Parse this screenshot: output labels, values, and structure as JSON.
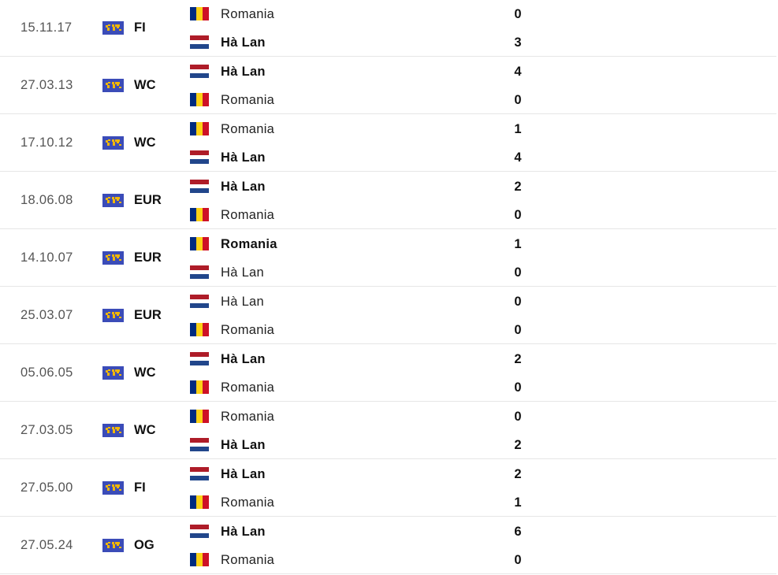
{
  "colors": {
    "comp_icon_bg": "#3b4cb8",
    "comp_icon_fg": "#f2b705",
    "divider": "#e6e6e6"
  },
  "matches": [
    {
      "date": "15.11.17",
      "competition": "FI",
      "home": {
        "name": "Romania",
        "flag": "romania",
        "score": "0",
        "winner": false
      },
      "away": {
        "name": "Hà Lan",
        "flag": "netherlands",
        "score": "3",
        "winner": true
      }
    },
    {
      "date": "27.03.13",
      "competition": "WC",
      "home": {
        "name": "Hà Lan",
        "flag": "netherlands",
        "score": "4",
        "winner": true
      },
      "away": {
        "name": "Romania",
        "flag": "romania",
        "score": "0",
        "winner": false
      }
    },
    {
      "date": "17.10.12",
      "competition": "WC",
      "home": {
        "name": "Romania",
        "flag": "romania",
        "score": "1",
        "winner": false
      },
      "away": {
        "name": "Hà Lan",
        "flag": "netherlands",
        "score": "4",
        "winner": true
      }
    },
    {
      "date": "18.06.08",
      "competition": "EUR",
      "home": {
        "name": "Hà Lan",
        "flag": "netherlands",
        "score": "2",
        "winner": true
      },
      "away": {
        "name": "Romania",
        "flag": "romania",
        "score": "0",
        "winner": false
      }
    },
    {
      "date": "14.10.07",
      "competition": "EUR",
      "home": {
        "name": "Romania",
        "flag": "romania",
        "score": "1",
        "winner": true
      },
      "away": {
        "name": "Hà Lan",
        "flag": "netherlands",
        "score": "0",
        "winner": false
      }
    },
    {
      "date": "25.03.07",
      "competition": "EUR",
      "home": {
        "name": "Hà Lan",
        "flag": "netherlands",
        "score": "0",
        "winner": false
      },
      "away": {
        "name": "Romania",
        "flag": "romania",
        "score": "0",
        "winner": false
      }
    },
    {
      "date": "05.06.05",
      "competition": "WC",
      "home": {
        "name": "Hà Lan",
        "flag": "netherlands",
        "score": "2",
        "winner": true
      },
      "away": {
        "name": "Romania",
        "flag": "romania",
        "score": "0",
        "winner": false
      }
    },
    {
      "date": "27.03.05",
      "competition": "WC",
      "home": {
        "name": "Romania",
        "flag": "romania",
        "score": "0",
        "winner": false
      },
      "away": {
        "name": "Hà Lan",
        "flag": "netherlands",
        "score": "2",
        "winner": true
      }
    },
    {
      "date": "27.05.00",
      "competition": "FI",
      "home": {
        "name": "Hà Lan",
        "flag": "netherlands",
        "score": "2",
        "winner": true
      },
      "away": {
        "name": "Romania",
        "flag": "romania",
        "score": "1",
        "winner": false
      }
    },
    {
      "date": "27.05.24",
      "competition": "OG",
      "home": {
        "name": "Hà Lan",
        "flag": "netherlands",
        "score": "6",
        "winner": true
      },
      "away": {
        "name": "Romania",
        "flag": "romania",
        "score": "0",
        "winner": false
      }
    }
  ]
}
